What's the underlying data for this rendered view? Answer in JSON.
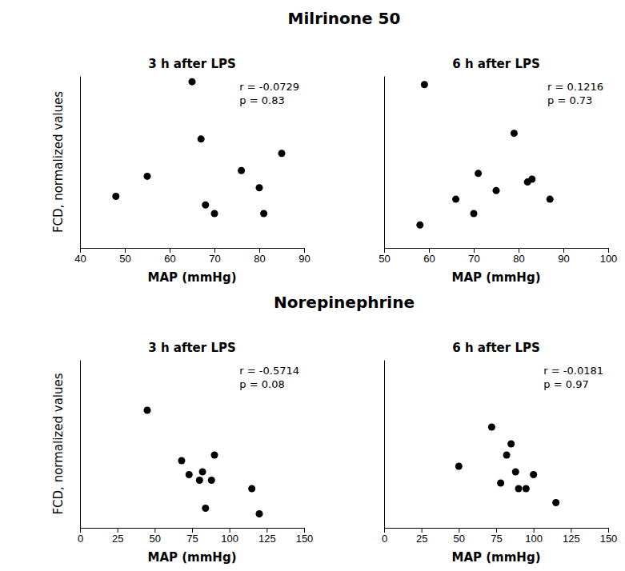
{
  "titles": [
    "Milrinone 50",
    "Norepinephrine"
  ],
  "chart_data": [
    {
      "type": "scatter",
      "title": "3 h after LPS",
      "xlabel": "MAP (mmHg)",
      "ylabel": "FCD, normalized values",
      "annotations": [
        "r = -0.0729",
        "p = 0.83"
      ],
      "x": [
        48,
        55,
        65,
        67,
        68,
        70,
        76,
        80,
        81,
        85
      ],
      "y": [
        0.48,
        0.55,
        0.88,
        0.68,
        0.45,
        0.42,
        0.57,
        0.51,
        0.42,
        0.63
      ],
      "xlim": [
        40,
        90
      ],
      "xticks": [
        40,
        50,
        60,
        70,
        80,
        90
      ],
      "ylim": [
        0.3,
        0.9
      ],
      "color": "#000000",
      "marker": "circle",
      "tick_labels": "x"
    },
    {
      "type": "scatter",
      "title": "6 h after LPS",
      "xlabel": "MAP (mmHg)",
      "annotations": [
        "r = 0.1216",
        "p = 0.73"
      ],
      "x": [
        58,
        59,
        66,
        70,
        71,
        75,
        79,
        82,
        83,
        87
      ],
      "y": [
        0.38,
        0.87,
        0.47,
        0.42,
        0.56,
        0.5,
        0.7,
        0.53,
        0.54,
        0.47
      ],
      "xlim": [
        50,
        100
      ],
      "xticks": [
        50,
        60,
        70,
        80,
        90,
        100
      ],
      "ylim": [
        0.3,
        0.9
      ],
      "color": "#000000",
      "marker": "circle",
      "tick_labels": "x"
    },
    {
      "type": "scatter",
      "title": "3 h after LPS",
      "xlabel": "MAP (mmHg)",
      "ylabel": "FCD, normalized values",
      "annotations": [
        "r = -0.5714",
        "p = 0.08"
      ],
      "x": [
        45,
        68,
        73,
        80,
        82,
        84,
        88,
        90,
        115,
        120
      ],
      "y": [
        0.72,
        0.54,
        0.49,
        0.47,
        0.5,
        0.37,
        0.47,
        0.56,
        0.44,
        0.35
      ],
      "xlim": [
        0,
        150
      ],
      "xticks": [
        0,
        25,
        50,
        75,
        100,
        125,
        150
      ],
      "ylim": [
        0.3,
        0.9
      ],
      "color": "#000000",
      "marker": "circle",
      "tick_labels": "x"
    },
    {
      "type": "scatter",
      "title": "6 h after LPS",
      "xlabel": "MAP (mmHg)",
      "annotations": [
        "r = -0.0181",
        "p = 0.97"
      ],
      "x": [
        50,
        72,
        78,
        82,
        85,
        88,
        90,
        95,
        100,
        115
      ],
      "y": [
        0.52,
        0.66,
        0.46,
        0.56,
        0.6,
        0.5,
        0.44,
        0.44,
        0.49,
        0.39
      ],
      "xlim": [
        0,
        150
      ],
      "xticks": [
        0,
        25,
        50,
        75,
        100,
        125,
        150
      ],
      "ylim": [
        0.3,
        0.9
      ],
      "color": "#000000",
      "marker": "circle",
      "tick_labels": "x"
    }
  ]
}
